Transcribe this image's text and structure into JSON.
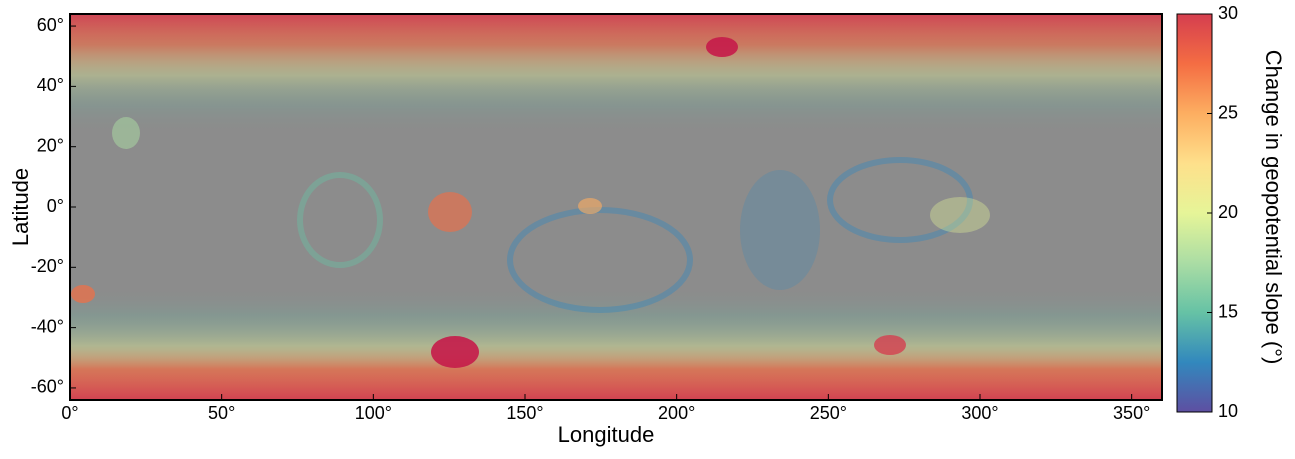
{
  "chart_data": {
    "type": "map",
    "xlabel": "Longitude",
    "ylabel": "Latitude",
    "xlim": [
      0,
      360
    ],
    "ylim": [
      -64,
      64
    ],
    "xticks": [
      {
        "value": 0,
        "label": "0°"
      },
      {
        "value": 50,
        "label": "50°"
      },
      {
        "value": 100,
        "label": "100°"
      },
      {
        "value": 150,
        "label": "150°"
      },
      {
        "value": 200,
        "label": "200°"
      },
      {
        "value": 250,
        "label": "250°"
      },
      {
        "value": 300,
        "label": "300°"
      },
      {
        "value": 350,
        "label": "350°"
      }
    ],
    "yticks": [
      {
        "value": -60,
        "label": "-60°"
      },
      {
        "value": -40,
        "label": "-40°"
      },
      {
        "value": -20,
        "label": "-20°"
      },
      {
        "value": 0,
        "label": "0°"
      },
      {
        "value": 20,
        "label": "20°"
      },
      {
        "value": 40,
        "label": "40°"
      },
      {
        "value": 60,
        "label": "60°"
      }
    ],
    "colorbar": {
      "label": "Change in geopotential  slope (°)",
      "clim": [
        10,
        30
      ],
      "ticks": [
        10,
        15,
        20,
        25,
        30
      ],
      "colormap": [
        "#5e4fa2",
        "#3288bd",
        "#66c2a5",
        "#abdda4",
        "#e6f598",
        "#fee08b",
        "#fdae61",
        "#f46d43",
        "#d53e4f"
      ]
    }
  }
}
